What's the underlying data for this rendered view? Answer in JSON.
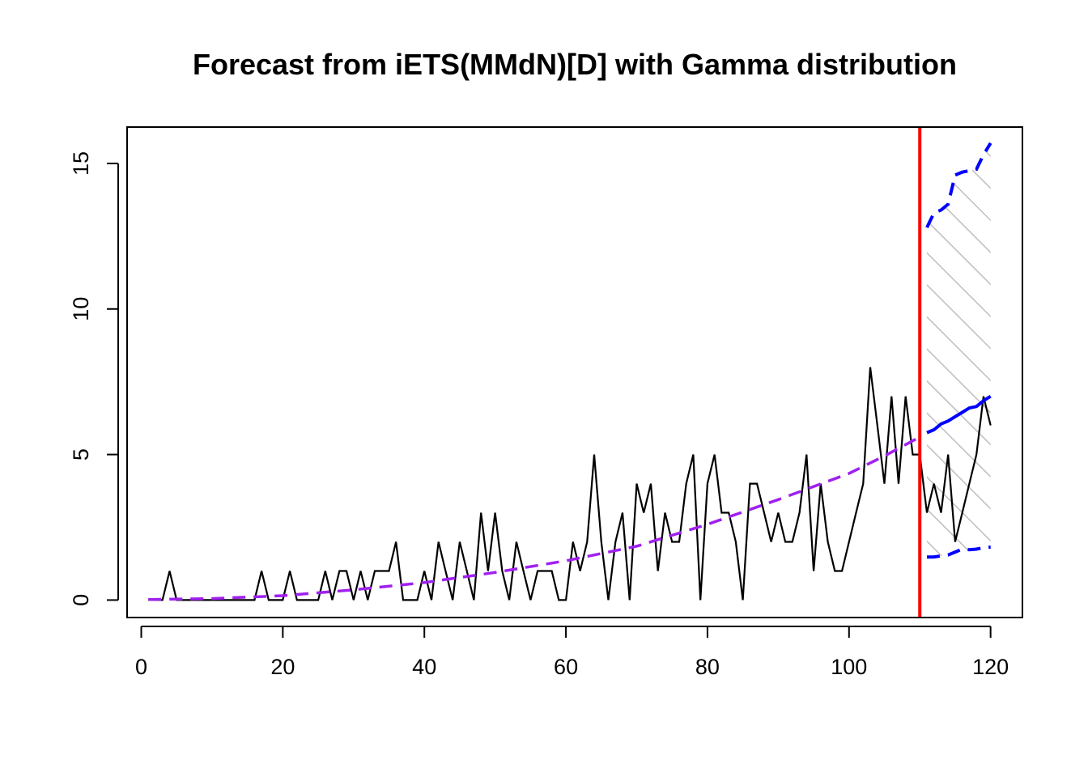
{
  "chart_data": {
    "type": "line",
    "title": "Forecast from iETS(MMdN)[D] with Gamma distribution",
    "xlabel": "",
    "ylabel": "",
    "xlim": [
      -2,
      124.5
    ],
    "ylim": [
      -0.6,
      16.25
    ],
    "x_ticks": [
      0,
      20,
      40,
      60,
      80,
      100,
      120
    ],
    "y_ticks": [
      0,
      5,
      10,
      15
    ],
    "forecast_origin": 110,
    "series": [
      {
        "role": "actual",
        "color": "#000000",
        "x": [
          1,
          2,
          3,
          4,
          5,
          6,
          7,
          8,
          9,
          10,
          11,
          12,
          13,
          14,
          15,
          16,
          17,
          18,
          19,
          20,
          21,
          22,
          23,
          24,
          25,
          26,
          27,
          28,
          29,
          30,
          31,
          32,
          33,
          34,
          35,
          36,
          37,
          38,
          39,
          40,
          41,
          42,
          43,
          44,
          45,
          46,
          47,
          48,
          49,
          50,
          51,
          52,
          53,
          54,
          55,
          56,
          57,
          58,
          59,
          60,
          61,
          62,
          63,
          64,
          65,
          66,
          67,
          68,
          69,
          70,
          71,
          72,
          73,
          74,
          75,
          76,
          77,
          78,
          79,
          80,
          81,
          82,
          83,
          84,
          85,
          86,
          87,
          88,
          89,
          90,
          91,
          92,
          93,
          94,
          95,
          96,
          97,
          98,
          99,
          100,
          101,
          102,
          103,
          104,
          105,
          106,
          107,
          108,
          109,
          110,
          111,
          112,
          113,
          114,
          115,
          116,
          117,
          118,
          119,
          120
        ],
        "values": [
          0,
          0,
          0,
          1,
          0,
          0,
          0,
          0,
          0,
          0,
          0,
          0,
          0,
          0,
          0,
          0,
          1,
          0,
          0,
          0,
          1,
          0,
          0,
          0,
          0,
          1,
          0,
          1,
          1,
          0,
          1,
          0,
          1,
          1,
          1,
          2,
          0,
          0,
          0,
          1,
          0,
          2,
          1,
          0,
          2,
          1,
          0,
          3,
          1,
          3,
          1,
          0,
          2,
          1,
          0,
          1,
          1,
          1,
          0,
          0,
          2,
          1,
          2,
          5,
          2,
          0,
          2,
          3,
          0,
          4,
          3,
          4,
          1,
          3,
          2,
          2,
          4,
          5,
          0,
          4,
          5,
          3,
          3,
          2,
          0,
          4,
          4,
          3,
          2,
          3,
          2,
          2,
          3,
          5,
          1,
          4,
          2,
          1,
          1,
          2,
          3,
          4,
          8,
          6,
          4,
          7,
          4,
          7,
          5,
          5,
          3,
          4,
          3,
          5,
          2,
          3,
          4,
          5,
          7,
          6
        ]
      },
      {
        "role": "fitted",
        "color": "#a020f0",
        "x": [
          1,
          10,
          20,
          30,
          40,
          50,
          60,
          70,
          80,
          90,
          100,
          105,
          110
        ],
        "values": [
          0.02,
          0.05,
          0.15,
          0.35,
          0.6,
          0.95,
          1.35,
          1.85,
          2.6,
          3.45,
          4.35,
          4.95,
          5.6
        ]
      },
      {
        "role": "point-forecast",
        "color": "#0000ff",
        "x": [
          111,
          112,
          113,
          114,
          115,
          116,
          117,
          118,
          119,
          120
        ],
        "values": [
          5.75,
          5.85,
          6.05,
          6.15,
          6.3,
          6.45,
          6.6,
          6.65,
          6.85,
          7.0
        ]
      },
      {
        "role": "upper-bound",
        "color": "#0000ff",
        "x": [
          111,
          112,
          113,
          114,
          115,
          116,
          117,
          118,
          119,
          120
        ],
        "values": [
          12.8,
          13.3,
          13.4,
          13.6,
          14.6,
          14.7,
          14.75,
          14.8,
          15.3,
          15.7
        ]
      },
      {
        "role": "lower-bound",
        "color": "#0000ff",
        "x": [
          111,
          112,
          113,
          114,
          115,
          116,
          117,
          118,
          119,
          120
        ],
        "values": [
          1.48,
          1.48,
          1.52,
          1.55,
          1.65,
          1.75,
          1.73,
          1.75,
          1.8,
          1.82
        ]
      }
    ],
    "interval_fill": "hatched-grey",
    "grid": false,
    "colors": {
      "actual": "#000000",
      "fitted": "#a020f0",
      "forecast": "#0000ff",
      "origin_line": "#ff0000",
      "hatch": "#bebebe"
    }
  }
}
